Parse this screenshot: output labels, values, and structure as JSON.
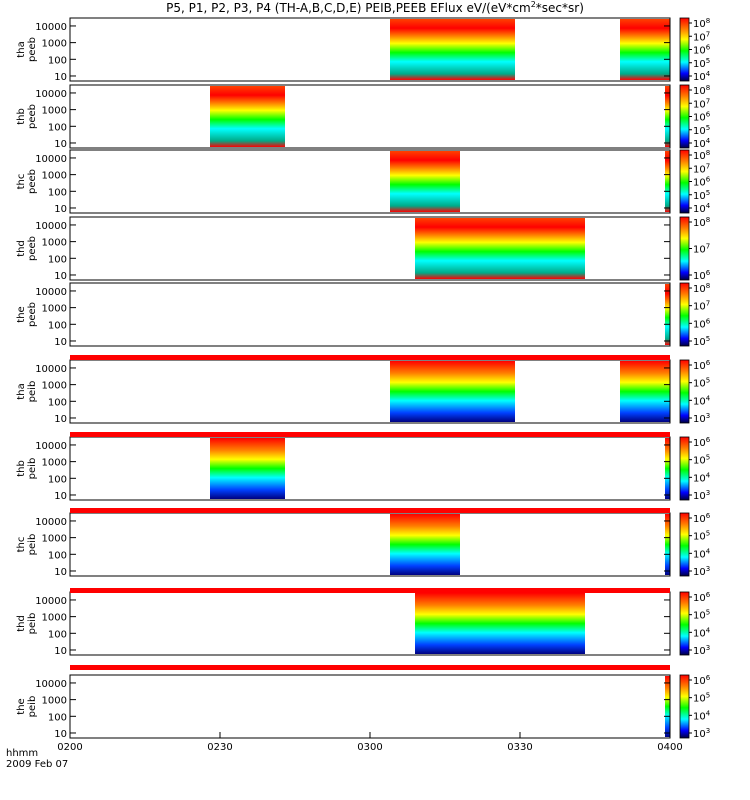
{
  "chart_data": {
    "type": "heatmap",
    "title": {
      "prefix": "P5, P1, P2, P3, P4 (TH-A,B,C,D,E) PEIB,PEEB EFlux eV/(eV*cm",
      "sup": "2",
      "suffix": "*sec*sr)"
    },
    "xaxis": {
      "label": "hhmm",
      "date": "2009 Feb 07",
      "ticks": [
        "0200",
        "0230",
        "0300",
        "0330",
        "0400"
      ],
      "range": [
        "02:00",
        "04:00"
      ]
    },
    "yaxis": {
      "scale": "log",
      "tick_labels": [
        "10",
        "100",
        "1000",
        "10000"
      ],
      "range_eV": [
        5,
        30000
      ]
    },
    "colorbar_palette": [
      "#ffffff",
      "#ff0000",
      "#ff8000",
      "#ffff00",
      "#00ff00",
      "#00ffff",
      "#0040ff",
      "#000080",
      "#000000"
    ],
    "panels": [
      {
        "probe": "tha",
        "species": "peeb",
        "cbar": "8,7,6,5,4",
        "data_intervals": [
          [
            "03:04",
            "03:29"
          ],
          [
            "03:50",
            "04:00"
          ]
        ]
      },
      {
        "probe": "thb",
        "species": "peeb",
        "cbar": "8,7,6,5,4",
        "data_intervals": [
          [
            "02:28",
            "02:43"
          ],
          [
            "03:59",
            "04:00"
          ]
        ]
      },
      {
        "probe": "thc",
        "species": "peeb",
        "cbar": "8,7,6,5,4",
        "data_intervals": [
          [
            "03:04",
            "03:18"
          ],
          [
            "03:59",
            "04:00"
          ]
        ]
      },
      {
        "probe": "thd",
        "species": "peeb",
        "cbar": "8,7,6",
        "data_intervals": [
          [
            "03:09",
            "03:43"
          ]
        ]
      },
      {
        "probe": "the",
        "species": "peeb",
        "cbar": "8,7,6,5",
        "data_intervals": [
          [
            "03:59",
            "04:00"
          ]
        ]
      },
      {
        "probe": "tha",
        "species": "peib",
        "cbar": "6,5,4,3",
        "data_intervals": [
          [
            "03:04",
            "03:29"
          ],
          [
            "03:50",
            "04:00"
          ]
        ]
      },
      {
        "probe": "thb",
        "species": "peib",
        "cbar": "6,5,4,3",
        "data_intervals": [
          [
            "02:28",
            "02:43"
          ],
          [
            "03:59",
            "04:00"
          ]
        ]
      },
      {
        "probe": "thc",
        "species": "peib",
        "cbar": "6,5,4,3",
        "data_intervals": [
          [
            "03:04",
            "03:18"
          ],
          [
            "03:59",
            "04:00"
          ]
        ]
      },
      {
        "probe": "thd",
        "species": "peib",
        "cbar": "6,5,4,3",
        "data_intervals": [
          [
            "03:09",
            "03:43"
          ]
        ]
      },
      {
        "probe": "the",
        "species": "peib",
        "cbar": "6,5,4,3",
        "data_intervals": [
          [
            "03:59",
            "04:00"
          ]
        ]
      }
    ]
  }
}
